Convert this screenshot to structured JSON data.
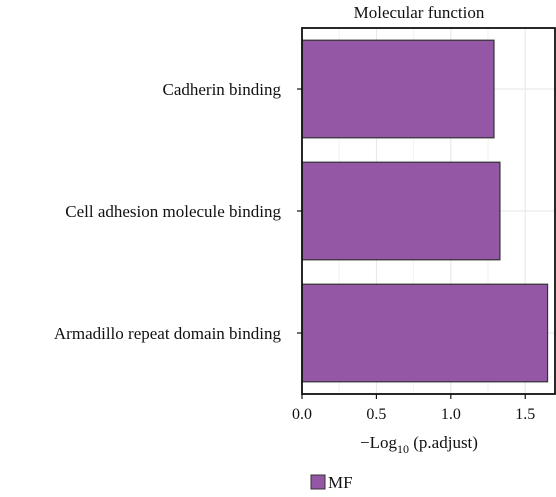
{
  "chart_data": {
    "type": "bar",
    "orientation": "horizontal",
    "title": "Molecular function",
    "xlabel_main": "−Log",
    "xlabel_sub": "10",
    "xlabel_tail": " (p.adjust)",
    "ylabel": "",
    "categories": [
      "Cadherin binding",
      "Cell adhesion molecule binding",
      "Armadillo repeat domain binding"
    ],
    "values": [
      1.29,
      1.33,
      1.65
    ],
    "xlim": [
      0,
      1.7
    ],
    "xticks": [
      0.0,
      0.5,
      1.0,
      1.5
    ],
    "xtick_labels": [
      "0.0",
      "0.5",
      "1.0",
      "1.5"
    ],
    "grid": true,
    "legend": {
      "placement": "bottom",
      "entries": [
        {
          "label": "MF",
          "color": "#9357a5"
        }
      ]
    },
    "bar_color": "#9357a5",
    "bar_edge_color": "#333333"
  }
}
